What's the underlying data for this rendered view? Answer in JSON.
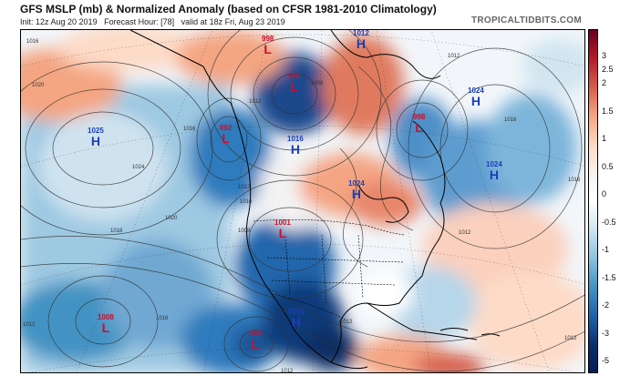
{
  "header": {
    "title": "GFS MSLP (mb) & Normalized Anomaly (based on CFSR 1981-2010 Climatology)",
    "subtitle": "Init: 12z Aug 20 2019   Forecast Hour: [78]   valid at 18z Fri, Aug 23 2019",
    "brand": "TROPICALTIDBITS.COM"
  },
  "colorbar": {
    "labels": [
      "3",
      "2.5",
      "2",
      "1.5",
      "1",
      "0.5",
      "0",
      "-0.5",
      "-1",
      "-1.5",
      "-2",
      "-3",
      "-5"
    ],
    "colors": [
      "#67001f",
      "#b2182b",
      "#d6604d",
      "#f4a582",
      "#fddbc7",
      "#f7f7f7",
      "#ffffff",
      "#d1e5f0",
      "#92c5de",
      "#4393c3",
      "#2166ac",
      "#08306b",
      "#081d58"
    ]
  },
  "pressure_centers": [
    {
      "type": "L",
      "value": "998",
      "cls": "low"
    },
    {
      "type": "H",
      "value": "1012",
      "cls": "high"
    },
    {
      "type": "L",
      "value": "988",
      "cls": "low"
    },
    {
      "type": "H",
      "value": "1024",
      "cls": "high"
    },
    {
      "type": "H",
      "value": "1025",
      "cls": "high"
    },
    {
      "type": "L",
      "value": "992",
      "cls": "low"
    },
    {
      "type": "H",
      "value": "1016",
      "cls": "high"
    },
    {
      "type": "L",
      "value": "998",
      "cls": "low"
    },
    {
      "type": "H",
      "value": "1024",
      "cls": "high"
    },
    {
      "type": "H",
      "value": "1024",
      "cls": "high"
    },
    {
      "type": "L",
      "value": "1001",
      "cls": "low"
    },
    {
      "type": "L",
      "value": "1008",
      "cls": "low"
    },
    {
      "type": "H",
      "value": "1016",
      "cls": "high"
    },
    {
      "type": "L",
      "value": "985",
      "cls": "low"
    }
  ],
  "isobar_labels": [
    "1016",
    "1020",
    "1024",
    "1016",
    "1012",
    "1008",
    "1012",
    "1016",
    "1020",
    "1016",
    "1012",
    "1012",
    "1016",
    "1012",
    "1012",
    "1008",
    "1012",
    "1016",
    "1012",
    "1016",
    "1012"
  ]
}
